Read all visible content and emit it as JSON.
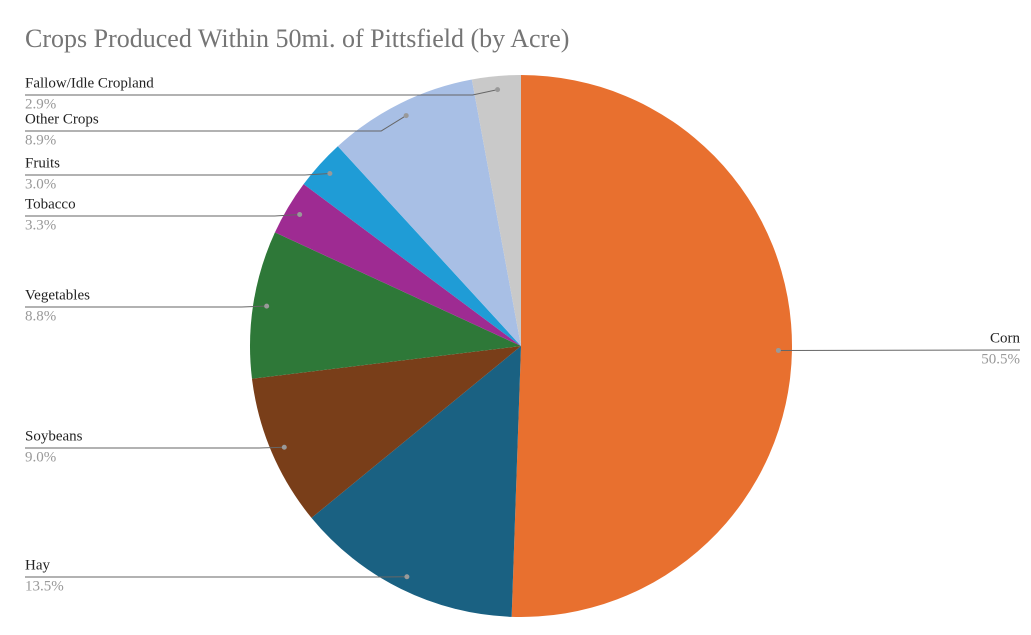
{
  "chart_data": {
    "type": "pie",
    "title": "Crops Produced Within 50mi. of Pittsfield (by Acre)",
    "categories": [
      "Corn",
      "Hay",
      "Soybeans",
      "Vegetables",
      "Tobacco",
      "Fruits",
      "Other Crops",
      "Fallow/Idle Cropland"
    ],
    "values": [
      50.5,
      13.5,
      9.0,
      8.8,
      3.3,
      3.0,
      8.9,
      2.9
    ],
    "value_labels": [
      "50.5%",
      "13.5%",
      "9.0%",
      "8.8%",
      "3.3%",
      "3.0%",
      "8.9%",
      "2.9%"
    ],
    "colors": [
      "#e8702f",
      "#1a6182",
      "#793e19",
      "#2e7838",
      "#9e2b92",
      "#1f9cd6",
      "#a8bfe5",
      "#c9c9c9"
    ]
  }
}
